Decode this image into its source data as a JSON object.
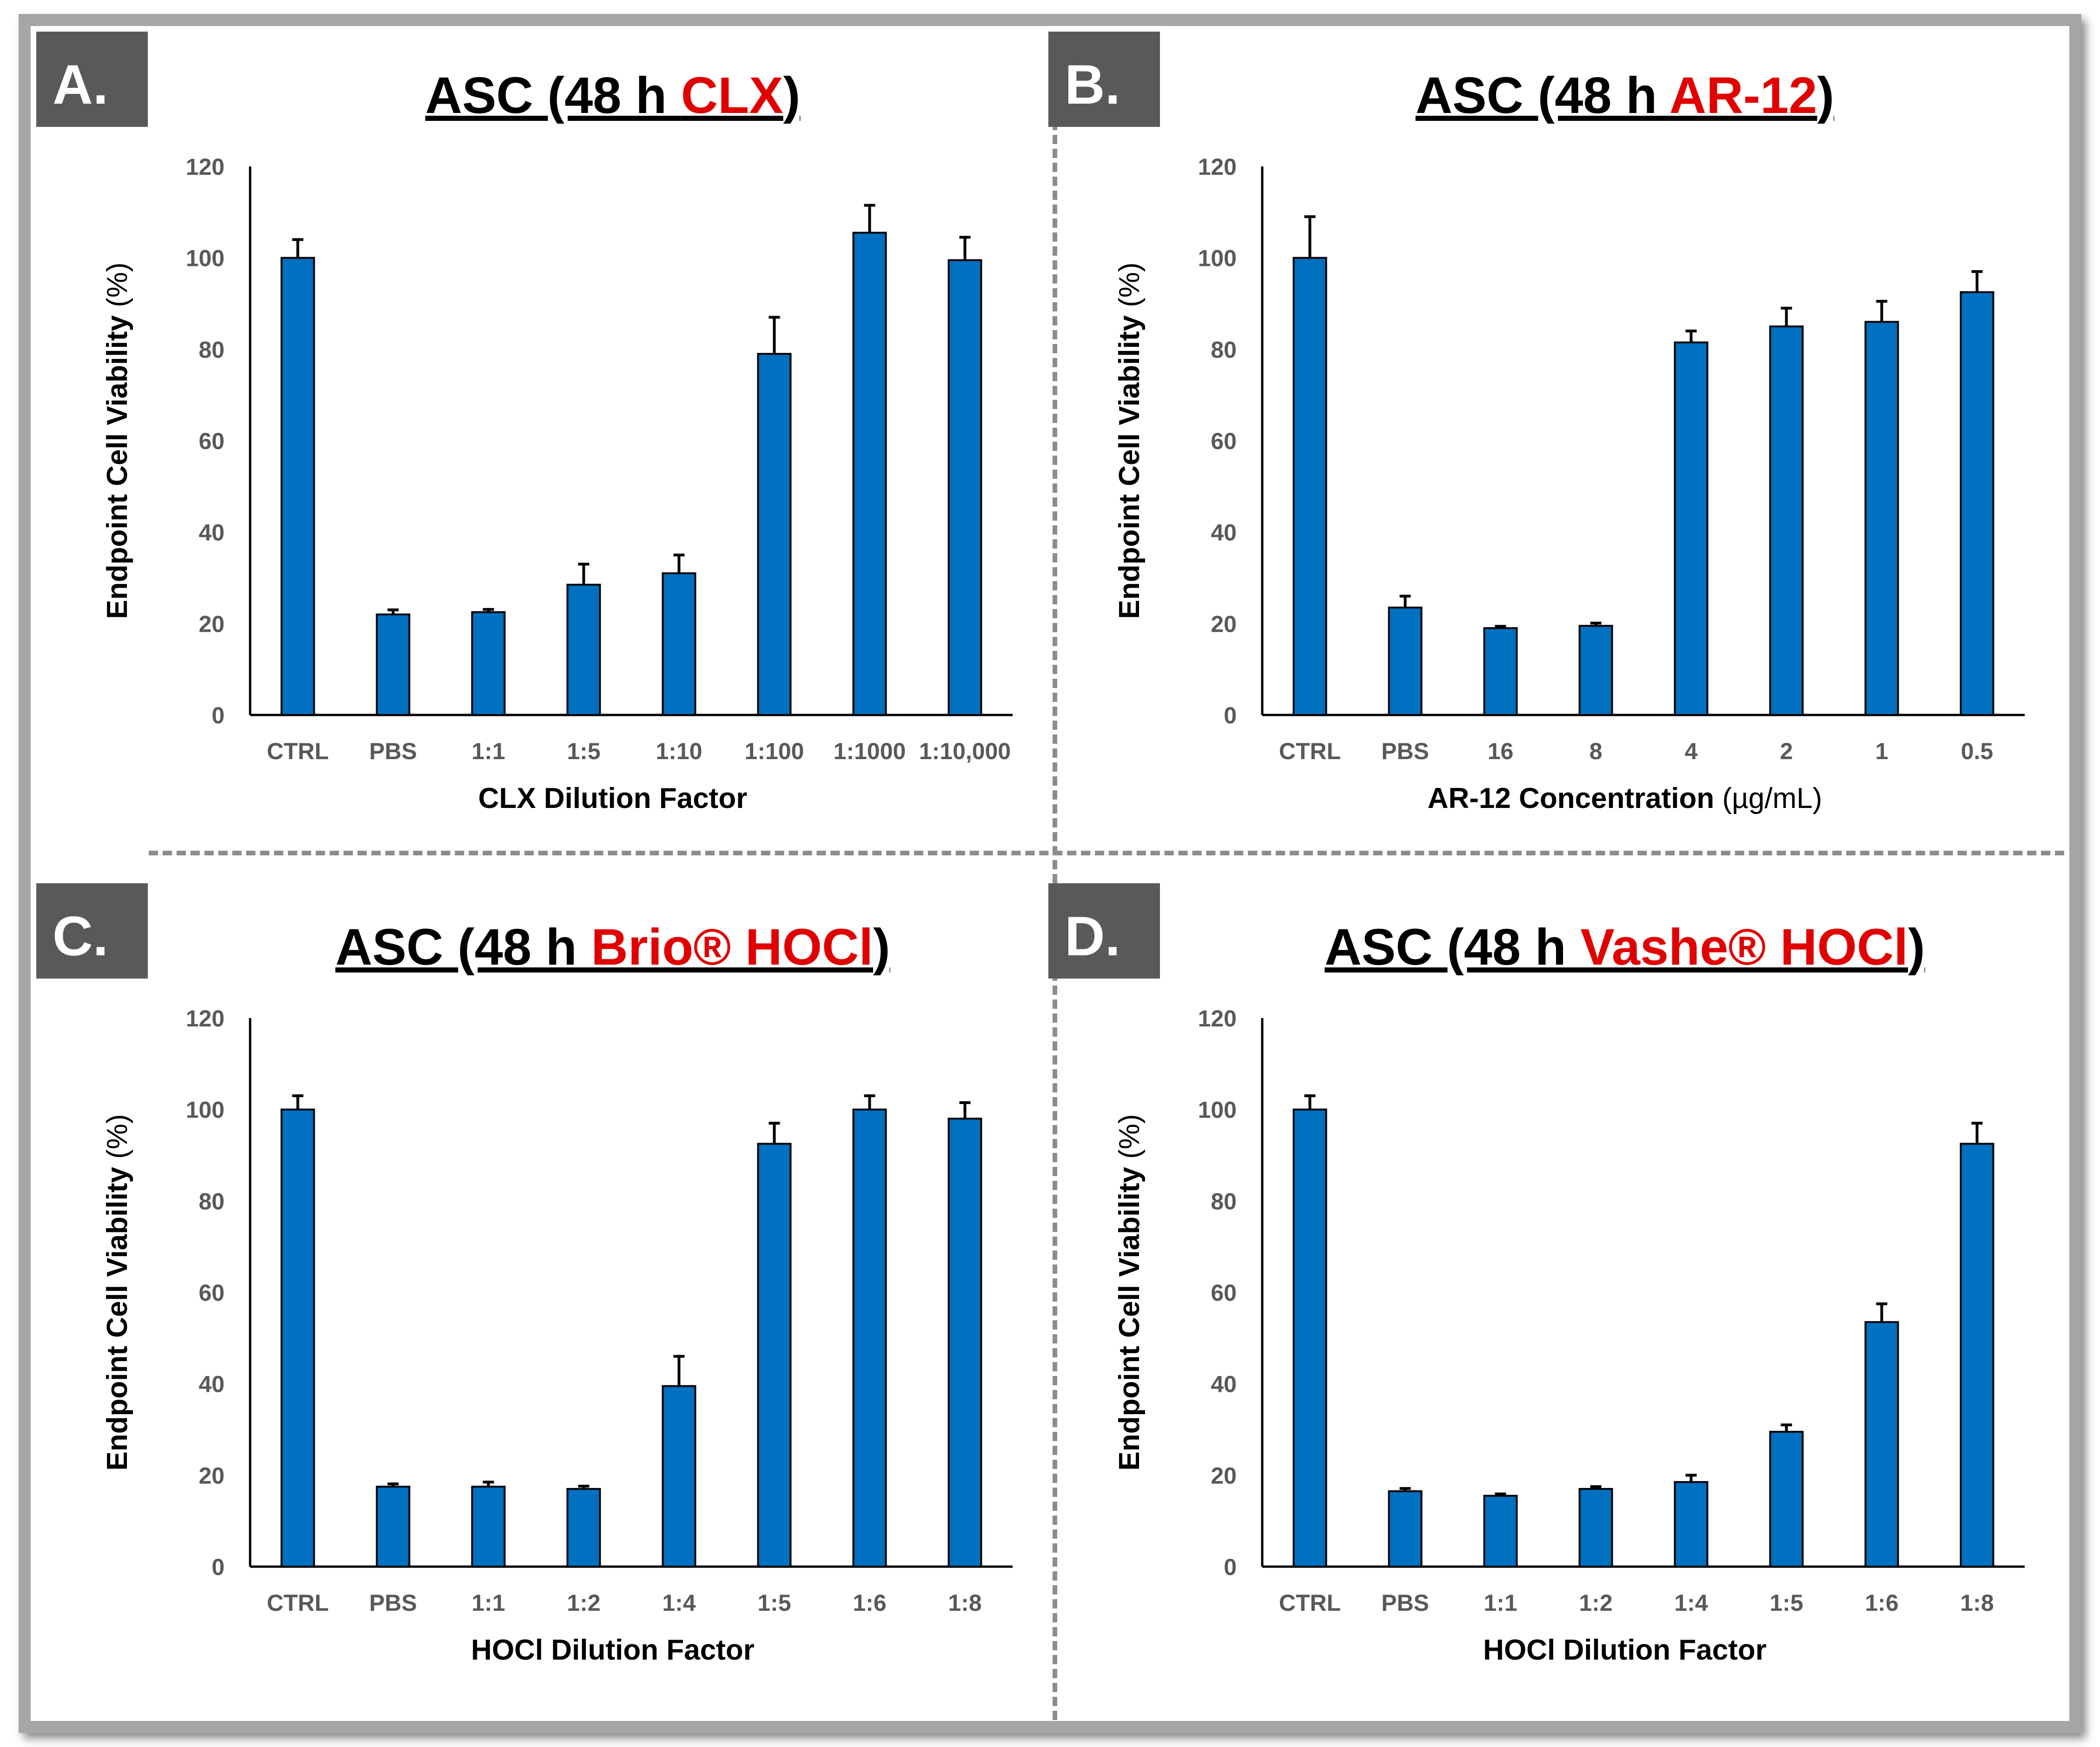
{
  "colors": {
    "bar": "#0070c0",
    "title_accent": "#e00000",
    "panel_label_bg": "#595959",
    "divider": "#8c8c8c"
  },
  "panels": [
    {
      "letter": "A.",
      "title_prefix": "ASC (48 h ",
      "title_highlight": "CLX",
      "title_suffix": ")",
      "ylabel_bold": "Endpoint Cell Viability",
      "ylabel_plain": " (%)",
      "xlabel_bold": "CLX Dilution Factor",
      "xlabel_plain": "",
      "yticks": [
        "0",
        "20",
        "40",
        "60",
        "80",
        "100",
        "120"
      ]
    },
    {
      "letter": "B.",
      "title_prefix": "ASC (48 h ",
      "title_highlight": "AR-12",
      "title_suffix": ")",
      "ylabel_bold": "Endpoint Cell Viability",
      "ylabel_plain": " (%)",
      "xlabel_bold": "AR-12 Concentration",
      "xlabel_plain": " (µg/mL)",
      "yticks": [
        "0",
        "20",
        "40",
        "60",
        "80",
        "100",
        "120"
      ]
    },
    {
      "letter": "C.",
      "title_prefix": "ASC (48 h ",
      "title_highlight": "Brio® HOCl",
      "title_suffix": ")",
      "ylabel_bold": "Endpoint Cell Viability",
      "ylabel_plain": " (%)",
      "xlabel_bold": "HOCl Dilution Factor",
      "xlabel_plain": "",
      "yticks": [
        "0",
        "20",
        "40",
        "60",
        "80",
        "100",
        "120"
      ]
    },
    {
      "letter": "D.",
      "title_prefix": "ASC (48 h ",
      "title_highlight": "Vashe® HOCl",
      "title_suffix": ")",
      "ylabel_bold": "Endpoint Cell Viability",
      "ylabel_plain": " (%)",
      "xlabel_bold": "HOCl Dilution Factor",
      "xlabel_plain": "",
      "yticks": [
        "0",
        "20",
        "40",
        "60",
        "80",
        "100",
        "120"
      ]
    }
  ],
  "chart_data": [
    {
      "type": "bar",
      "title": "ASC (48 h CLX)",
      "xlabel": "CLX Dilution Factor",
      "ylabel": "Endpoint Cell Viability (%)",
      "ylim": [
        0,
        120
      ],
      "categories": [
        "CTRL",
        "PBS",
        "1:1",
        "1:5",
        "1:10",
        "1:100",
        "1:1000",
        "1:10,000"
      ],
      "values": [
        100,
        22,
        22.5,
        28.5,
        31,
        79,
        105.5,
        99.5
      ],
      "errors": [
        4,
        1,
        0.6,
        4.5,
        4,
        8,
        6,
        5
      ]
    },
    {
      "type": "bar",
      "title": "ASC (48 h AR-12)",
      "xlabel": "AR-12 Concentration (µg/mL)",
      "ylabel": "Endpoint Cell Viability (%)",
      "ylim": [
        0,
        120
      ],
      "categories": [
        "CTRL",
        "PBS",
        "16",
        "8",
        "4",
        "2",
        "1",
        "0.5"
      ],
      "values": [
        100,
        23.5,
        19,
        19.5,
        81.5,
        85,
        86,
        92.5
      ],
      "errors": [
        9,
        2.5,
        0.4,
        0.6,
        2.5,
        4,
        4.5,
        4.5
      ]
    },
    {
      "type": "bar",
      "title": "ASC (48 h Brio® HOCl)",
      "xlabel": "HOCl Dilution Factor",
      "ylabel": "Endpoint Cell Viability (%)",
      "ylim": [
        0,
        120
      ],
      "categories": [
        "CTRL",
        "PBS",
        "1:1",
        "1:2",
        "1:4",
        "1:5",
        "1:6",
        "1:8"
      ],
      "values": [
        100,
        17.5,
        17.5,
        17,
        39.5,
        92.5,
        100,
        98
      ],
      "errors": [
        3,
        0.6,
        1,
        0.6,
        6.5,
        4.5,
        3,
        3.5
      ]
    },
    {
      "type": "bar",
      "title": "ASC (48 h Vashe® HOCl)",
      "xlabel": "HOCl Dilution Factor",
      "ylabel": "Endpoint Cell Viability (%)",
      "ylim": [
        0,
        120
      ],
      "categories": [
        "CTRL",
        "PBS",
        "1:1",
        "1:2",
        "1:4",
        "1:5",
        "1:6",
        "1:8"
      ],
      "values": [
        100,
        16.5,
        15.5,
        17,
        18.5,
        29.5,
        53.5,
        92.5
      ],
      "errors": [
        3,
        0.6,
        0.4,
        0.5,
        1.5,
        1.5,
        4,
        4.5
      ]
    }
  ]
}
